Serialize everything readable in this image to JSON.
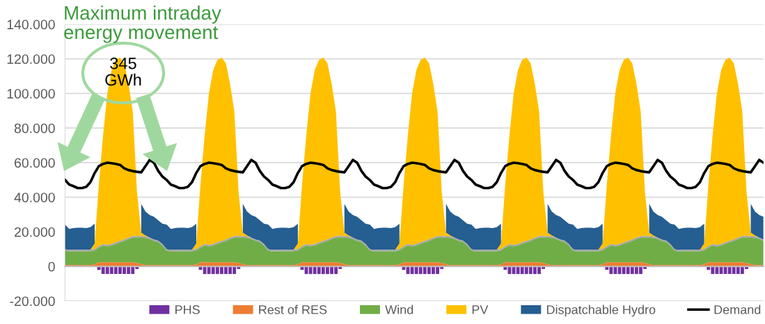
{
  "chart_data": {
    "type": "area",
    "stacked": true,
    "categories": [
      null,
      null,
      null,
      null,
      null,
      null,
      null,
      null,
      null,
      null,
      null,
      null,
      null,
      null,
      null,
      null,
      null,
      null,
      null,
      null,
      null,
      null,
      null,
      null,
      null,
      null,
      null,
      null,
      null,
      null,
      null,
      null,
      null,
      null,
      null,
      null,
      null,
      null,
      null,
      null,
      null,
      null,
      null,
      null,
      null,
      null,
      null,
      null,
      null,
      null,
      null,
      null,
      null,
      null,
      null,
      null,
      null,
      null,
      null,
      null,
      null,
      null,
      null,
      null,
      null,
      null,
      null,
      null,
      null,
      null,
      null,
      null,
      null,
      null,
      null,
      null,
      null,
      null,
      null,
      null,
      null,
      null,
      null,
      null,
      null,
      null,
      null,
      null,
      null,
      null,
      null,
      null,
      null,
      null,
      null,
      null,
      null,
      null,
      null,
      null,
      null,
      null,
      null,
      null,
      null,
      null,
      null,
      null,
      null,
      null,
      null,
      null,
      null,
      null,
      null,
      null,
      null,
      null,
      null,
      null,
      null,
      null,
      null,
      null,
      null,
      null,
      null,
      null,
      null,
      null,
      null,
      null,
      null,
      null,
      null,
      null,
      null,
      null,
      null,
      null,
      null,
      null,
      null,
      null,
      null,
      null,
      null,
      null,
      null,
      null,
      null,
      null,
      null,
      null,
      null,
      null,
      null,
      null,
      null,
      null,
      null,
      null,
      null,
      null,
      null,
      null
    ],
    "series": [
      {
        "name": "PHS",
        "type": "bar",
        "color": "#7030a0",
        "values": [
          0,
          0,
          0,
          0,
          0,
          0,
          0,
          0,
          -2000,
          -4400,
          -4400,
          -4400,
          -4400,
          -4400,
          -4400,
          -4400,
          -4400,
          -1500,
          0,
          0,
          0,
          0,
          0,
          0,
          0,
          0,
          0,
          0,
          0,
          0,
          0,
          0,
          -2000,
          -4400,
          -4400,
          -4400,
          -4400,
          -4400,
          -4400,
          -4400,
          -4400,
          -1500,
          0,
          0,
          0,
          0,
          0,
          0,
          0,
          0,
          0,
          0,
          0,
          0,
          0,
          0,
          -2000,
          -4400,
          -4400,
          -4400,
          -4400,
          -4400,
          -4400,
          -4400,
          -4400,
          -1500,
          0,
          0,
          0,
          0,
          0,
          0,
          0,
          0,
          0,
          0,
          0,
          0,
          0,
          0,
          -2000,
          -4400,
          -4400,
          -4400,
          -4400,
          -4400,
          -4400,
          -4400,
          -4400,
          -1500,
          0,
          0,
          0,
          0,
          0,
          0,
          0,
          0,
          0,
          0,
          0,
          0,
          0,
          0,
          -2000,
          -4400,
          -4400,
          -4400,
          -4400,
          -4400,
          -4400,
          -4400,
          -4400,
          -1500,
          0,
          0,
          0,
          0,
          0,
          0,
          0,
          0,
          0,
          0,
          0,
          0,
          0,
          0,
          -2000,
          -4400,
          -4400,
          -4400,
          -4400,
          -4400,
          -4400,
          -4400,
          -4400,
          -1500,
          0,
          0,
          0,
          0,
          0,
          0,
          0,
          0,
          0,
          0,
          0,
          0,
          0,
          0,
          -2000,
          -4400,
          -4400,
          -4400,
          -4400,
          -4400,
          -4400,
          -4400,
          -4400,
          -1500,
          0,
          0,
          0,
          0
        ]
      },
      {
        "name": "Rest of RES",
        "color": "#ed7d31",
        "values": [
          800,
          800,
          800,
          800,
          800,
          800,
          800,
          1200,
          2400,
          2400,
          2400,
          2400,
          2400,
          2400,
          2400,
          2400,
          2400,
          2000,
          1300,
          800,
          800,
          800,
          800,
          800,
          800,
          800,
          800,
          800,
          800,
          800,
          800,
          1200,
          2400,
          2400,
          2400,
          2400,
          2400,
          2400,
          2400,
          2400,
          2400,
          2000,
          1300,
          800,
          800,
          800,
          800,
          800,
          800,
          800,
          800,
          800,
          800,
          800,
          800,
          1200,
          2400,
          2400,
          2400,
          2400,
          2400,
          2400,
          2400,
          2400,
          2400,
          2000,
          1300,
          800,
          800,
          800,
          800,
          800,
          800,
          800,
          800,
          800,
          800,
          800,
          800,
          1200,
          2400,
          2400,
          2400,
          2400,
          2400,
          2400,
          2400,
          2400,
          2400,
          2000,
          1300,
          800,
          800,
          800,
          800,
          800,
          800,
          800,
          800,
          800,
          800,
          800,
          800,
          1200,
          2400,
          2400,
          2400,
          2400,
          2400,
          2400,
          2400,
          2400,
          2400,
          2000,
          1300,
          800,
          800,
          800,
          800,
          800,
          800,
          800,
          800,
          800,
          800,
          800,
          800,
          1200,
          2400,
          2400,
          2400,
          2400,
          2400,
          2400,
          2400,
          2400,
          2400,
          2000,
          1300,
          800,
          800,
          800,
          800,
          800,
          800,
          800,
          800,
          800,
          800,
          800,
          800,
          1200,
          2400,
          2400,
          2400,
          2400,
          2400,
          2400,
          2400,
          2400,
          2400,
          2000,
          1300,
          800,
          800,
          800
        ]
      },
      {
        "name": "Wind",
        "color": "#70ad47",
        "values": [
          8200,
          7800,
          7900,
          7900,
          7900,
          7900,
          7900,
          8000,
          8400,
          9600,
          9100,
          9600,
          10600,
          11400,
          12200,
          13400,
          14200,
          14800,
          15300,
          15700,
          15000,
          13800,
          13200,
          11200,
          8200,
          7800,
          7900,
          7900,
          7900,
          7900,
          7900,
          8000,
          8400,
          9600,
          9100,
          9600,
          10600,
          11400,
          12200,
          13400,
          14200,
          14800,
          15300,
          15700,
          15000,
          13800,
          13200,
          11200,
          8200,
          7800,
          7900,
          7900,
          7900,
          7900,
          7900,
          8000,
          8400,
          9600,
          9100,
          9600,
          10600,
          11400,
          12200,
          13400,
          14200,
          14800,
          15300,
          15700,
          15000,
          13800,
          13200,
          11200,
          8200,
          7800,
          7900,
          7900,
          7900,
          7900,
          7900,
          8000,
          8400,
          9600,
          9100,
          9600,
          10600,
          11400,
          12200,
          13400,
          14200,
          14800,
          15300,
          15700,
          15000,
          13800,
          13200,
          11200,
          8200,
          7800,
          7900,
          7900,
          7900,
          7900,
          7900,
          8000,
          8400,
          9600,
          9100,
          9600,
          10600,
          11400,
          12200,
          13400,
          14200,
          14800,
          15300,
          15700,
          15000,
          13800,
          13200,
          11200,
          8200,
          7800,
          7900,
          7900,
          7900,
          7900,
          7900,
          8000,
          8400,
          9600,
          9100,
          9600,
          10600,
          11400,
          12200,
          13400,
          14200,
          14800,
          15300,
          15700,
          15000,
          13800,
          13200,
          11200,
          8200,
          7800,
          7900,
          7900,
          7900,
          7900,
          7900,
          8000,
          8400,
          9600,
          9100,
          9600,
          10600,
          11400,
          12200,
          13400,
          14200,
          14800,
          15300,
          15700,
          15000,
          13800
        ]
      },
      {
        "color": "#a5a5a5",
        "values": [
          900,
          900,
          900,
          900,
          900,
          900,
          900,
          900,
          900,
          900,
          900,
          900,
          900,
          900,
          900,
          900,
          900,
          900,
          900,
          900,
          900,
          900,
          900,
          900,
          900,
          900,
          900,
          900,
          900,
          900,
          900,
          900,
          900,
          900,
          900,
          900,
          900,
          900,
          900,
          900,
          900,
          900,
          900,
          900,
          900,
          900,
          900,
          900,
          900,
          900,
          900,
          900,
          900,
          900,
          900,
          900,
          900,
          900,
          900,
          900,
          900,
          900,
          900,
          900,
          900,
          900,
          900,
          900,
          900,
          900,
          900,
          900,
          900,
          900,
          900,
          900,
          900,
          900,
          900,
          900,
          900,
          900,
          900,
          900,
          900,
          900,
          900,
          900,
          900,
          900,
          900,
          900,
          900,
          900,
          900,
          900,
          900,
          900,
          900,
          900,
          900,
          900,
          900,
          900,
          900,
          900,
          900,
          900,
          900,
          900,
          900,
          900,
          900,
          900,
          900,
          900,
          900,
          900,
          900,
          900,
          900,
          900,
          900,
          900,
          900,
          900,
          900,
          900,
          900,
          900,
          900,
          900,
          900,
          900,
          900,
          900,
          900,
          900,
          900,
          900,
          900,
          900,
          900,
          900,
          900,
          900,
          900,
          900,
          900,
          900,
          900,
          900,
          900,
          900,
          900,
          900,
          900,
          900,
          900,
          900,
          900,
          900,
          900,
          900,
          900,
          900
        ]
      },
      {
        "name": "PV",
        "color": "#ffc000",
        "values": [
          0,
          0,
          0,
          0,
          0,
          0,
          0,
          3000,
          35800,
          63300,
          87800,
          100600,
          105600,
          106100,
          102000,
          88800,
          72000,
          25200,
          2000,
          500,
          0,
          0,
          0,
          0,
          0,
          0,
          0,
          0,
          0,
          0,
          0,
          3000,
          35800,
          63300,
          87800,
          100600,
          105600,
          106100,
          102000,
          88800,
          72000,
          25200,
          2000,
          500,
          0,
          0,
          0,
          0,
          0,
          0,
          0,
          0,
          0,
          0,
          0,
          3000,
          35800,
          63300,
          87800,
          100600,
          105600,
          106100,
          102000,
          88800,
          72000,
          25200,
          2000,
          500,
          0,
          0,
          0,
          0,
          0,
          0,
          0,
          0,
          0,
          0,
          0,
          3000,
          35800,
          63300,
          87800,
          100600,
          105600,
          106100,
          102000,
          88800,
          72000,
          25200,
          2000,
          500,
          0,
          0,
          0,
          0,
          0,
          0,
          0,
          0,
          0,
          0,
          0,
          3000,
          35800,
          63300,
          87800,
          100600,
          105600,
          106100,
          102000,
          88800,
          72000,
          25200,
          2000,
          500,
          0,
          0,
          0,
          0,
          0,
          0,
          0,
          0,
          0,
          0,
          0,
          3000,
          35800,
          63300,
          87800,
          100600,
          105600,
          106100,
          102000,
          88800,
          72000,
          25200,
          2000,
          500,
          0,
          0,
          0,
          0,
          0,
          0,
          0,
          0,
          0,
          0,
          0,
          3000,
          35800,
          63300,
          87800,
          100600,
          105600,
          106100,
          102000,
          88800,
          72000,
          25200,
          2000,
          500,
          0,
          0
        ]
      },
      {
        "name": "Dispatchable Hydro",
        "color": "#255e91",
        "values": [
          14300,
          12200,
          12600,
          12800,
          12800,
          12600,
          13100,
          11600,
          null,
          null,
          null,
          null,
          null,
          null,
          null,
          null,
          null,
          null,
          16700,
          13800,
          13000,
          13200,
          11800,
          11800,
          14300,
          12200,
          12600,
          12800,
          12800,
          12600,
          13100,
          11600,
          null,
          null,
          null,
          null,
          null,
          null,
          null,
          null,
          null,
          null,
          16700,
          13800,
          13000,
          13200,
          11800,
          11800,
          14300,
          12200,
          12600,
          12800,
          12800,
          12600,
          13100,
          11600,
          null,
          null,
          null,
          null,
          null,
          null,
          null,
          null,
          null,
          null,
          16700,
          13800,
          13000,
          13200,
          11800,
          11800,
          14300,
          12200,
          12600,
          12800,
          12800,
          12600,
          13100,
          11600,
          null,
          null,
          null,
          null,
          null,
          null,
          null,
          null,
          null,
          null,
          16700,
          13800,
          13000,
          13200,
          11800,
          11800,
          14300,
          12200,
          12600,
          12800,
          12800,
          12600,
          13100,
          11600,
          null,
          null,
          null,
          null,
          null,
          null,
          null,
          null,
          null,
          null,
          16700,
          13800,
          13000,
          13200,
          11800,
          11800,
          14300,
          12200,
          12600,
          12800,
          12800,
          12600,
          13100,
          11600,
          null,
          null,
          null,
          null,
          null,
          null,
          null,
          null,
          null,
          null,
          16700,
          13800,
          13000,
          13200,
          11800,
          11800,
          14300,
          12200,
          12600,
          12800,
          12800,
          12600,
          13100,
          11600,
          null,
          null,
          null,
          null,
          null,
          null,
          null,
          null,
          null,
          null,
          16700,
          13800,
          13000,
          13200
        ]
      },
      {
        "name": "Demand",
        "type": "line",
        "color": "#000000",
        "values": [
          50000,
          47300,
          46400,
          45300,
          45300,
          46000,
          48700,
          54000,
          58000,
          59300,
          60000,
          59700,
          59300,
          58700,
          56700,
          55700,
          55100,
          54700,
          54400,
          58000,
          61600,
          60000,
          55300,
          52000,
          50000,
          47300,
          46400,
          45300,
          45300,
          46000,
          48700,
          54000,
          58000,
          59300,
          60000,
          59700,
          59300,
          58700,
          56700,
          55700,
          55100,
          54700,
          54400,
          58000,
          61600,
          60000,
          55300,
          52000,
          50000,
          47300,
          46400,
          45300,
          45300,
          46000,
          48700,
          54000,
          58000,
          59300,
          60000,
          59700,
          59300,
          58700,
          56700,
          55700,
          55100,
          54700,
          54400,
          58000,
          61600,
          60000,
          55300,
          52000,
          50000,
          47300,
          46400,
          45300,
          45300,
          46000,
          48700,
          54000,
          58000,
          59300,
          60000,
          59700,
          59300,
          58700,
          56700,
          55700,
          55100,
          54700,
          54400,
          58000,
          61600,
          60000,
          55300,
          52000,
          50000,
          47300,
          46400,
          45300,
          45300,
          46000,
          48700,
          54000,
          58000,
          59300,
          60000,
          59700,
          59300,
          58700,
          56700,
          55700,
          55100,
          54700,
          54400,
          58000,
          61600,
          60000,
          55300,
          52000,
          50000,
          47300,
          46400,
          45300,
          45300,
          46000,
          48700,
          54000,
          58000,
          59300,
          60000,
          59700,
          59300,
          58700,
          56700,
          55700,
          55100,
          54700,
          54400,
          58000,
          61600,
          60000,
          55300,
          52000,
          50000,
          47300,
          46400,
          45300,
          45300,
          46000,
          48700,
          54000,
          58000,
          59300,
          60000,
          59700,
          59300,
          58700,
          56700,
          55700,
          55100,
          54700,
          54400,
          58000,
          61600,
          60000
        ]
      }
    ],
    "ylim": [
      -20000,
      140000
    ],
    "yticks": [
      {
        "value": -20000,
        "label": "-20.000"
      },
      {
        "value": 0,
        "label": "0"
      },
      {
        "value": 20000,
        "label": "20.000"
      },
      {
        "value": 40000,
        "label": "40.000"
      },
      {
        "value": 60000,
        "label": "60.000"
      },
      {
        "value": 80000,
        "label": "80.000"
      },
      {
        "value": 100000,
        "label": "100.000"
      },
      {
        "value": 120000,
        "label": "120.000"
      },
      {
        "value": 140000,
        "label": "140.000"
      }
    ],
    "grid": "y",
    "legend": "bottom",
    "line_style": "solid",
    "marker": "none",
    "annotations": [
      "Maximum intraday\nenergy movement",
      "345\nGWh"
    ]
  }
}
